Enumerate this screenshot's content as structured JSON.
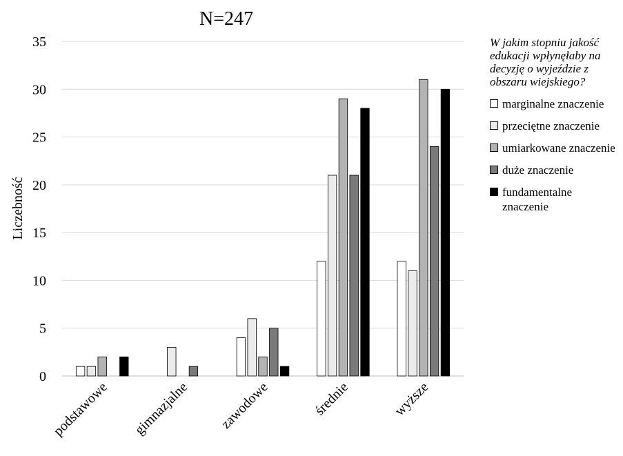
{
  "chart_data": {
    "type": "bar",
    "title": "N=247",
    "xlabel": "",
    "ylabel": "Liczebność",
    "ylim": [
      0,
      35
    ],
    "yticks": [
      "0",
      "5",
      "10",
      "15",
      "20",
      "25",
      "30",
      "35"
    ],
    "grid": true,
    "legend_position": "right",
    "legend_title": "W jakim stopniu jakość edukacji wpłynęłaby na decyzję o wyjeździe z obszaru wiejskiego?",
    "categories": [
      "podstawowe",
      "gimnazjalne",
      "zawodowe",
      "średnie",
      "wyższe"
    ],
    "series": [
      {
        "name": "marginalne znaczenie",
        "color": "#ffffff",
        "values": [
          1,
          0,
          4,
          12,
          12
        ]
      },
      {
        "name": "przeciętne znaczenie",
        "color": "#ebebeb",
        "values": [
          1,
          3,
          6,
          21,
          11
        ]
      },
      {
        "name": "umiarkowane znaczenie",
        "color": "#b3b3b3",
        "values": [
          2,
          0,
          2,
          29,
          31
        ]
      },
      {
        "name": "duże znaczenie",
        "color": "#7a7a7a",
        "values": [
          0,
          1,
          5,
          21,
          24
        ]
      },
      {
        "name": "fundamentalne znaczenie",
        "color": "#000000",
        "values": [
          2,
          0,
          1,
          28,
          30
        ]
      }
    ]
  }
}
